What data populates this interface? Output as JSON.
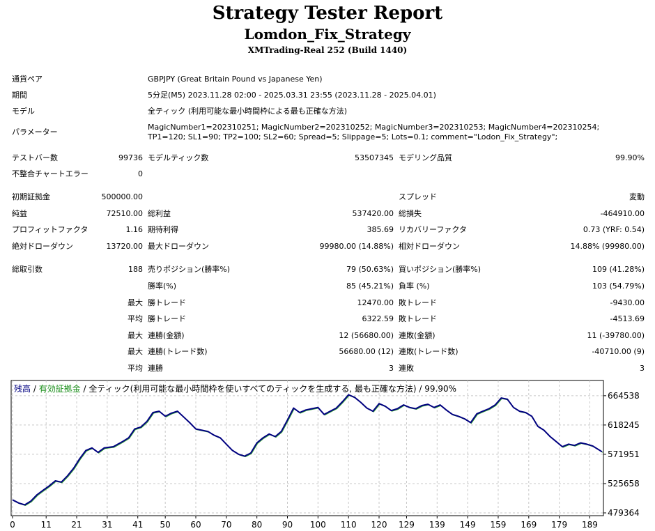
{
  "header": {
    "title": "Strategy Tester Report",
    "strategy": "Lomdon_Fix_Strategy",
    "server": "XMTrading-Real 252 (Build 1440)"
  },
  "info": {
    "pair_label": "通貨ペア",
    "pair_value": "GBPJPY (Great Britain Pound vs Japanese Yen)",
    "period_label": "期間",
    "period_value": "5分足(M5) 2023.11.28 02:00 - 2025.03.31 23:55 (2023.11.28 - 2025.04.01)",
    "model_label": "モデル",
    "model_value": "全ティック (利用可能な最小時間枠による最も正確な方法)",
    "params_label": "パラメーター",
    "params_value": "MagicNumber1=202310251; MagicNumber2=202310252; MagicNumber3=202310253; MagicNumber4=202310254; TP1=120; SL1=90; TP2=100; SL2=60; Spread=5; Slippage=5; Lots=0.1; comment=\"Lodon_Fix_Strategy\";"
  },
  "stats": {
    "bars_label": "テストバー数",
    "bars_value": "99736",
    "ticks_label": "モデルティック数",
    "ticks_value": "53507345",
    "quality_label": "モデリング品質",
    "quality_value": "99.90%",
    "errors_label": "不整合チャートエラー",
    "errors_value": "0",
    "deposit_label": "初期証拠金",
    "deposit_value": "500000.00",
    "spread_label": "スプレッド",
    "spread_value": "変動",
    "net_label": "純益",
    "net_value": "72510.00",
    "gross_profit_label": "総利益",
    "gross_profit_value": "537420.00",
    "gross_loss_label": "総損失",
    "gross_loss_value": "-464910.00",
    "pf_label": "プロフィットファクタ",
    "pf_value": "1.16",
    "expected_label": "期待利得",
    "expected_value": "385.69",
    "recovery_label": "リカバリーファクタ",
    "recovery_value": "0.73 (YRF: 0.54)",
    "abs_dd_label": "絶対ドローダウン",
    "abs_dd_value": "13720.00",
    "max_dd_label": "最大ドローダウン",
    "max_dd_value": "99980.00 (14.88%)",
    "rel_dd_label": "相対ドローダウン",
    "rel_dd_value": "14.88% (99980.00)",
    "trades_label": "総取引数",
    "trades_value": "188",
    "short_label": "売りポジション(勝率%)",
    "short_value": "79 (50.63%)",
    "long_label": "買いポジション(勝率%)",
    "long_value": "109 (41.28%)",
    "winrate_label": "勝率(%)",
    "winrate_value": "85 (45.21%)",
    "lossrate_label": "負率 (%)",
    "lossrate_value": "103 (54.79%)",
    "max_label": "最大",
    "avg_label": "平均",
    "max_win_label": "勝トレード",
    "max_win_value": "12470.00",
    "max_loss_label": "敗トレード",
    "max_loss_value": "-9430.00",
    "avg_win_label": "勝トレード",
    "avg_win_value": "6322.59",
    "avg_loss_label": "敗トレード",
    "avg_loss_value": "-4513.69",
    "max_consec_win_amt_label": "連勝(金額)",
    "max_consec_win_amt_value": "12 (56680.00)",
    "max_consec_loss_amt_label": "連敗(金額)",
    "max_consec_loss_amt_value": "11 (-39780.00)",
    "max_consec_win_trd_label": "連勝(トレード数)",
    "max_consec_win_trd_value": "56680.00 (12)",
    "max_consec_loss_trd_label": "連敗(トレード数)",
    "max_consec_loss_trd_value": "-40710.00 (9)",
    "avg_consec_win_label": "連勝",
    "avg_consec_win_value": "3",
    "avg_consec_loss_label": "連敗",
    "avg_consec_loss_value": "3"
  },
  "chart_caption": {
    "balance": "残高",
    "sep1": " / ",
    "equity": "有効証拠金",
    "rest": " / 全ティック(利用可能な最小時間枠を使いすべてのティックを生成する, 最も正確な方法) / 99.90%"
  },
  "chart_data": {
    "type": "line",
    "y_ticks": [
      "664538",
      "618245",
      "571951",
      "525658",
      "479364"
    ],
    "x_ticks": [
      "0",
      "11",
      "21",
      "31",
      "41",
      "50",
      "60",
      "70",
      "80",
      "90",
      "100",
      "110",
      "120",
      "129",
      "139",
      "149",
      "159",
      "169",
      "179",
      "189"
    ],
    "ylim": [
      479364,
      682000
    ],
    "xlim": [
      0,
      193
    ],
    "grid": true,
    "colors": {
      "balance": "#000080",
      "equity": "#2ea02e"
    },
    "series": [
      {
        "name": "残高",
        "x": [
          0,
          2,
          4,
          6,
          8,
          10,
          12,
          14,
          16,
          18,
          20,
          22,
          24,
          26,
          28,
          30,
          33,
          36,
          38,
          40,
          42,
          44,
          46,
          48,
          50,
          52,
          54,
          56,
          58,
          60,
          62,
          64,
          66,
          68,
          70,
          72,
          74,
          76,
          78,
          80,
          82,
          84,
          86,
          88,
          90,
          92,
          94,
          96,
          98,
          100,
          102,
          104,
          106,
          108,
          110,
          112,
          114,
          116,
          118,
          120,
          122,
          124,
          126,
          128,
          130,
          132,
          134,
          136,
          138,
          140,
          142,
          144,
          146,
          148,
          150,
          152,
          154,
          156,
          158,
          160,
          162,
          164,
          166,
          168,
          170,
          172,
          174,
          176,
          178,
          180,
          182,
          184,
          186,
          188,
          190,
          193
        ],
        "y": [
          500000,
          495000,
          492000,
          498000,
          508000,
          515000,
          522000,
          530000,
          528000,
          538000,
          550000,
          565000,
          578000,
          582000,
          575000,
          582000,
          584000,
          592000,
          598000,
          612000,
          615000,
          624000,
          638000,
          640000,
          632000,
          637000,
          640000,
          631000,
          622000,
          612000,
          610000,
          608000,
          602000,
          598000,
          588000,
          578000,
          572000,
          569000,
          574000,
          590000,
          598000,
          604000,
          600000,
          608000,
          626000,
          645000,
          638000,
          642000,
          644000,
          646000,
          635000,
          640000,
          645000,
          655000,
          666000,
          662000,
          654000,
          645000,
          640000,
          652000,
          648000,
          641000,
          644000,
          650000,
          646000,
          644000,
          649000,
          651000,
          646000,
          650000,
          642000,
          635000,
          632000,
          628000,
          622000,
          636000,
          640000,
          644000,
          650000,
          661000,
          659000,
          646000,
          640000,
          638000,
          632000,
          616000,
          610000,
          600000,
          592000,
          584000,
          588000,
          586000,
          590000,
          588000,
          585000,
          576000
        ]
      }
    ]
  }
}
